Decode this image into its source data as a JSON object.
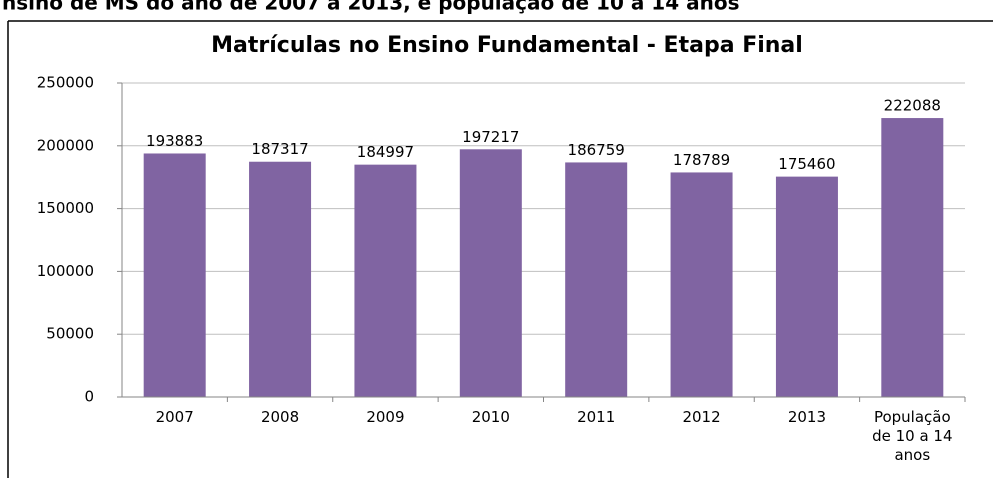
{
  "header": {
    "text": "nsino de MS do ano de 2007 a 2013, e população de 10 a 14 anos"
  },
  "chart_data": {
    "type": "bar",
    "title": "Matrículas no Ensino Fundamental - Etapa Final",
    "categories": [
      "2007",
      "2008",
      "2009",
      "2010",
      "2011",
      "2012",
      "2013",
      "População de 10 a 14 anos"
    ],
    "values": [
      193883,
      187317,
      184997,
      197217,
      186759,
      178789,
      175460,
      222088
    ],
    "color": "#8064a2",
    "ylim": [
      0,
      250000
    ],
    "yticks": [
      0,
      50000,
      100000,
      150000,
      200000,
      250000
    ],
    "grid": true
  }
}
